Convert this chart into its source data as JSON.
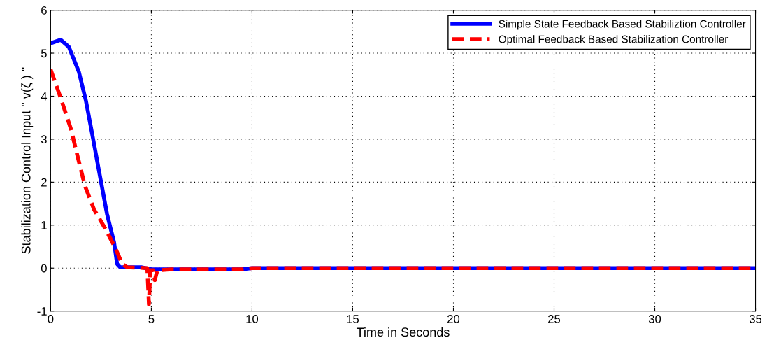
{
  "chart_data": {
    "type": "line",
    "xlabel": "Time in Seconds",
    "ylabel": "Stabilization Control Input \" v(ζ ) \"",
    "xlim": [
      0,
      35
    ],
    "ylim": [
      -1,
      6
    ],
    "xticks": [
      0,
      5,
      10,
      15,
      20,
      25,
      30,
      35
    ],
    "yticks": [
      -1,
      0,
      1,
      2,
      3,
      4,
      5,
      6
    ],
    "grid": true,
    "legend": "top right",
    "series": [
      {
        "name": "Simple State Feedback Based Stabiliztion Controller",
        "color": "#0000ff",
        "line_style": "solid",
        "x": [
          0,
          0.5,
          0.9,
          1.4,
          1.75,
          2.1,
          2.45,
          2.8,
          3.15,
          3.3,
          3.45,
          4.5,
          5,
          9.5,
          10,
          35
        ],
        "values": [
          5.23,
          5.31,
          5.15,
          4.57,
          3.9,
          3.03,
          2.14,
          1.26,
          0.6,
          0.1,
          0.02,
          0.02,
          -0.03,
          -0.03,
          0,
          0
        ]
      },
      {
        "name": "Optimal Feedback Based Stabilization Controller",
        "color": "#ff0000",
        "line_style": "dashed",
        "x": [
          0,
          0.5,
          1.0,
          1.35,
          1.7,
          2.15,
          2.7,
          3.2,
          3.55,
          3.8,
          4.8,
          4.88,
          4.95,
          5.1,
          5.17,
          5.3,
          6,
          9.5,
          10,
          35
        ],
        "values": [
          4.62,
          3.96,
          3.25,
          2.58,
          1.92,
          1.37,
          0.93,
          0.48,
          0.1,
          0.02,
          0.0,
          -0.84,
          -0.05,
          -0.05,
          -0.28,
          -0.05,
          -0.03,
          -0.03,
          0,
          0
        ]
      }
    ]
  }
}
